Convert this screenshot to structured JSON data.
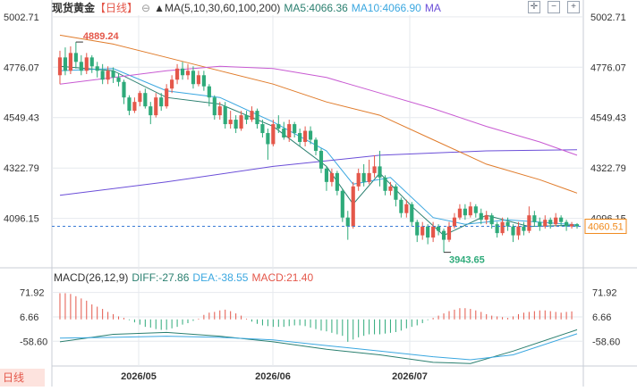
{
  "header": {
    "symbol": "现货黄金",
    "period_tag": "【日线】",
    "indicator_name": "MA(5,10,30,60,100,200)",
    "ma5": "MA5:4066.36",
    "ma10": "MA10:4066.90",
    "ma_extra": "MA"
  },
  "macd_header": {
    "name": "MACD(26,12,9)",
    "diff": "DIFF:-27.86",
    "dea": "DEA:-38.55",
    "macd": "MACD:21.40"
  },
  "toolbar": {
    "icons": [
      "crosshair-icon",
      "minus-icon",
      "plus-icon"
    ]
  },
  "period_tab": "日线",
  "colors": {
    "up": "#e4574a",
    "down": "#2eaa7a",
    "ma5": "#2a7f6f",
    "ma10": "#3aa7e0",
    "ma30": "#6b4ed8",
    "ma60": "#e07b2a",
    "ma100": "#c85ad2",
    "diff": "#2a7f6f",
    "dea": "#3aa7e0",
    "price_tag": "#f08a1c",
    "grid": "#e6e9ee"
  },
  "chart_data": [
    {
      "type": "candlestick",
      "title": "现货黄金 日线",
      "y_ticks": [
        5002.71,
        4776.07,
        4549.43,
        4322.79,
        4096.15
      ],
      "ylim": [
        3890,
        5010
      ],
      "x_ticks": [
        "2026/05",
        "2026/06",
        "2026/07"
      ],
      "current_price": "4060.51",
      "annotations": [
        {
          "label": "4889.24",
          "value": 4889.24,
          "kind": "high"
        },
        {
          "label": "3943.65",
          "value": 3943.65,
          "kind": "low"
        }
      ],
      "candles": [
        [
          4740,
          4820,
          4850,
          4700
        ],
        [
          4820,
          4760,
          4865,
          4740
        ],
        [
          4760,
          4840,
          4870,
          4745
        ],
        [
          4840,
          4800,
          4889.24,
          4770
        ],
        [
          4800,
          4760,
          4830,
          4740
        ],
        [
          4760,
          4820,
          4840,
          4745
        ],
        [
          4820,
          4780,
          4830,
          4750
        ],
        [
          4780,
          4760,
          4800,
          4730
        ],
        [
          4760,
          4720,
          4790,
          4700
        ],
        [
          4720,
          4760,
          4780,
          4700
        ],
        [
          4760,
          4730,
          4775,
          4705
        ],
        [
          4730,
          4710,
          4750,
          4690
        ],
        [
          4710,
          4640,
          4720,
          4610
        ],
        [
          4640,
          4580,
          4650,
          4560
        ],
        [
          4580,
          4620,
          4640,
          4570
        ],
        [
          4620,
          4660,
          4670,
          4600
        ],
        [
          4660,
          4600,
          4680,
          4590
        ],
        [
          4600,
          4560,
          4620,
          4520
        ],
        [
          4560,
          4640,
          4660,
          4550
        ],
        [
          4640,
          4600,
          4660,
          4580
        ],
        [
          4600,
          4680,
          4700,
          4590
        ],
        [
          4680,
          4720,
          4740,
          4660
        ],
        [
          4720,
          4770,
          4790,
          4700
        ],
        [
          4770,
          4740,
          4800,
          4720
        ],
        [
          4740,
          4760,
          4790,
          4720
        ],
        [
          4760,
          4700,
          4780,
          4680
        ],
        [
          4700,
          4740,
          4760,
          4690
        ],
        [
          4740,
          4690,
          4760,
          4670
        ],
        [
          4690,
          4640,
          4700,
          4600
        ],
        [
          4640,
          4560,
          4650,
          4540
        ],
        [
          4560,
          4600,
          4620,
          4540
        ],
        [
          4600,
          4520,
          4620,
          4500
        ],
        [
          4520,
          4540,
          4580,
          4500
        ],
        [
          4540,
          4500,
          4560,
          4480
        ],
        [
          4500,
          4560,
          4580,
          4490
        ],
        [
          4560,
          4540,
          4580,
          4520
        ],
        [
          4540,
          4580,
          4600,
          4530
        ],
        [
          4580,
          4520,
          4590,
          4500
        ],
        [
          4520,
          4480,
          4540,
          4460
        ],
        [
          4480,
          4430,
          4500,
          4360
        ],
        [
          4430,
          4520,
          4540,
          4420
        ],
        [
          4520,
          4500,
          4560,
          4480
        ],
        [
          4500,
          4460,
          4530,
          4450
        ],
        [
          4460,
          4520,
          4540,
          4440
        ],
        [
          4520,
          4480,
          4530,
          4460
        ],
        [
          4480,
          4440,
          4500,
          4420
        ],
        [
          4440,
          4490,
          4510,
          4420
        ],
        [
          4490,
          4450,
          4510,
          4430
        ],
        [
          4450,
          4400,
          4460,
          4380
        ],
        [
          4400,
          4320,
          4410,
          4300
        ],
        [
          4320,
          4260,
          4330,
          4220
        ],
        [
          4260,
          4300,
          4320,
          4240
        ],
        [
          4300,
          4220,
          4310,
          4200
        ],
        [
          4220,
          4100,
          4230,
          4080
        ],
        [
          4100,
          4060,
          4130,
          4000
        ],
        [
          4060,
          4240,
          4260,
          4050
        ],
        [
          4240,
          4300,
          4320,
          4220
        ],
        [
          4300,
          4260,
          4340,
          4240
        ],
        [
          4260,
          4300,
          4360,
          4250
        ],
        [
          4300,
          4330,
          4380,
          4280
        ],
        [
          4330,
          4280,
          4400,
          4240
        ],
        [
          4280,
          4220,
          4290,
          4200
        ],
        [
          4220,
          4240,
          4260,
          4200
        ],
        [
          4240,
          4180,
          4250,
          4150
        ],
        [
          4180,
          4120,
          4190,
          4100
        ],
        [
          4120,
          4160,
          4180,
          4100
        ],
        [
          4160,
          4080,
          4170,
          4060
        ],
        [
          4080,
          4020,
          4090,
          3990
        ],
        [
          4020,
          4060,
          4080,
          4000
        ],
        [
          4060,
          4010,
          4070,
          3980
        ],
        [
          4010,
          4060,
          4080,
          3990
        ],
        [
          4060,
          4040,
          4070,
          4020
        ],
        [
          4040,
          4000,
          4050,
          3943.65
        ],
        [
          4000,
          4060,
          4080,
          3990
        ],
        [
          4060,
          4100,
          4120,
          4050
        ],
        [
          4100,
          4140,
          4160,
          4090
        ],
        [
          4140,
          4110,
          4160,
          4090
        ],
        [
          4110,
          4150,
          4170,
          4100
        ],
        [
          4150,
          4120,
          4160,
          4100
        ],
        [
          4120,
          4090,
          4140,
          4070
        ],
        [
          4090,
          4110,
          4130,
          4070
        ],
        [
          4110,
          4070,
          4120,
          4050
        ],
        [
          4070,
          4030,
          4080,
          4010
        ],
        [
          4030,
          4080,
          4100,
          4020
        ],
        [
          4080,
          4060,
          4100,
          4040
        ],
        [
          4060,
          4020,
          4070,
          3990
        ],
        [
          4020,
          4060,
          4080,
          4000
        ],
        [
          4060,
          4040,
          4080,
          4020
        ],
        [
          4040,
          4110,
          4150,
          4030
        ],
        [
          4110,
          4080,
          4130,
          4060
        ],
        [
          4080,
          4060,
          4100,
          4040
        ],
        [
          4060,
          4090,
          4110,
          4050
        ],
        [
          4090,
          4070,
          4100,
          4050
        ],
        [
          4070,
          4100,
          4120,
          4060
        ],
        [
          4100,
          4080,
          4110,
          4060
        ],
        [
          4080,
          4060,
          4090,
          4040
        ],
        [
          4060,
          4070,
          4080,
          4050
        ],
        [
          4070,
          4060,
          4075,
          4050
        ]
      ],
      "ma_series": [
        {
          "name": "MA5",
          "values": [
            [
              0,
              4780
            ],
            [
              10,
              4760
            ],
            [
              20,
              4640
            ],
            [
              30,
              4610
            ],
            [
              40,
              4510
            ],
            [
              50,
              4330
            ],
            [
              55,
              4160
            ],
            [
              60,
              4300
            ],
            [
              66,
              4150
            ],
            [
              72,
              4020
            ],
            [
              80,
              4110
            ],
            [
              88,
              4060
            ],
            [
              97,
              4066.36
            ]
          ]
        },
        {
          "name": "MA10",
          "values": [
            [
              0,
              4760
            ],
            [
              10,
              4770
            ],
            [
              20,
              4670
            ],
            [
              30,
              4640
            ],
            [
              40,
              4530
            ],
            [
              50,
              4400
            ],
            [
              55,
              4250
            ],
            [
              62,
              4280
            ],
            [
              70,
              4100
            ],
            [
              76,
              4070
            ],
            [
              84,
              4090
            ],
            [
              97,
              4066.9
            ]
          ]
        },
        {
          "name": "MA30",
          "values": [
            [
              0,
              4200
            ],
            [
              20,
              4260
            ],
            [
              40,
              4330
            ],
            [
              60,
              4380
            ],
            [
              80,
              4400
            ],
            [
              97,
              4405
            ]
          ]
        },
        {
          "name": "MA60",
          "values": [
            [
              0,
              4920
            ],
            [
              10,
              4880
            ],
            [
              20,
              4820
            ],
            [
              30,
              4760
            ],
            [
              40,
              4700
            ],
            [
              50,
              4620
            ],
            [
              60,
              4560
            ],
            [
              70,
              4450
            ],
            [
              80,
              4340
            ],
            [
              90,
              4270
            ],
            [
              97,
              4210
            ]
          ]
        },
        {
          "name": "MA100",
          "values": [
            [
              0,
              4700
            ],
            [
              10,
              4730
            ],
            [
              20,
              4760
            ],
            [
              30,
              4780
            ],
            [
              40,
              4770
            ],
            [
              50,
              4730
            ],
            [
              60,
              4660
            ],
            [
              70,
              4590
            ],
            [
              80,
              4510
            ],
            [
              90,
              4440
            ],
            [
              97,
              4380
            ]
          ]
        }
      ]
    },
    {
      "type": "macd",
      "title": "MACD(26,12,9)",
      "y_ticks": [
        71.92,
        6.66,
        -58.6
      ],
      "ylim": [
        -120,
        95
      ],
      "diff": [
        [
          0,
          -60
        ],
        [
          10,
          -40
        ],
        [
          20,
          -35
        ],
        [
          30,
          -45
        ],
        [
          40,
          -60
        ],
        [
          50,
          -80
        ],
        [
          60,
          -95
        ],
        [
          70,
          -115
        ],
        [
          77,
          -118
        ],
        [
          85,
          -85
        ],
        [
          97,
          -27.86
        ]
      ],
      "dea": [
        [
          0,
          -50
        ],
        [
          10,
          -48
        ],
        [
          20,
          -45
        ],
        [
          30,
          -48
        ],
        [
          40,
          -55
        ],
        [
          50,
          -70
        ],
        [
          60,
          -85
        ],
        [
          70,
          -100
        ],
        [
          77,
          -108
        ],
        [
          85,
          -95
        ],
        [
          97,
          -38.55
        ]
      ],
      "hist": [
        70,
        70,
        68,
        62,
        56,
        50,
        40,
        34,
        28,
        20,
        14,
        8,
        4,
        -2,
        -8,
        -14,
        -20,
        -22,
        -26,
        -28,
        -28,
        -24,
        -20,
        -14,
        -10,
        -4,
        2,
        12,
        18,
        20,
        24,
        26,
        22,
        16,
        10,
        2,
        -6,
        -12,
        -16,
        -18,
        -20,
        -20,
        -20,
        -18,
        -16,
        -16,
        -18,
        -22,
        -26,
        -30,
        -32,
        -36,
        -40,
        -44,
        -60,
        -54,
        -48,
        -44,
        -40,
        -40,
        -40,
        -38,
        -36,
        -34,
        -30,
        -24,
        -20,
        -16,
        -10,
        -2,
        4,
        10,
        16,
        22,
        26,
        30,
        30,
        28,
        24,
        20,
        14,
        10,
        8,
        6,
        4,
        8,
        14,
        18,
        20,
        22,
        24,
        24,
        22,
        20,
        18,
        20,
        21.4
      ]
    }
  ]
}
